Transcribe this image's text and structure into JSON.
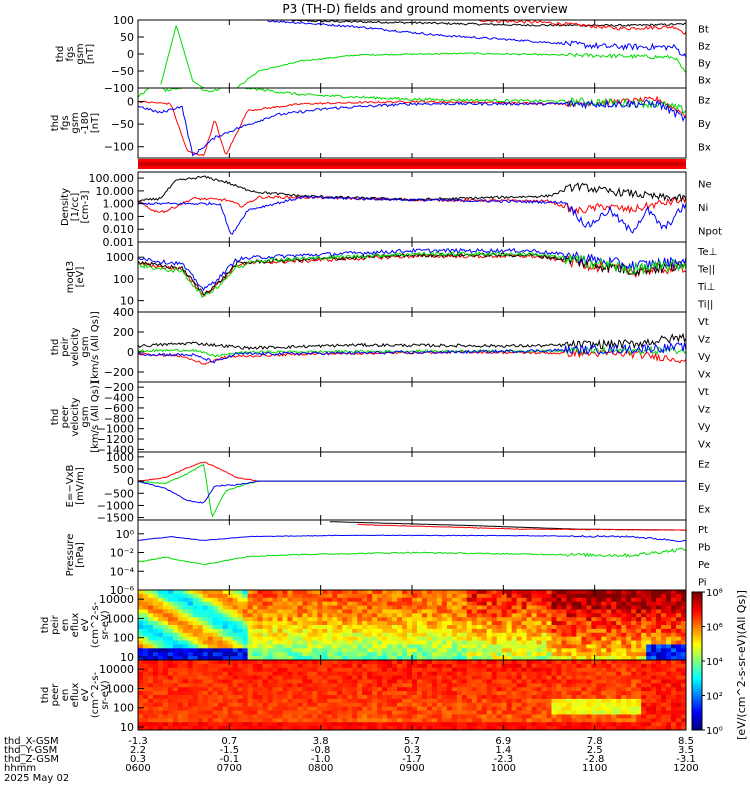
{
  "title": "P3 (TH-D) fields and ground moments overview",
  "chart_data": {
    "type": "line",
    "title": "P3 (TH-D) fields and ground moments overview",
    "panels": [
      {
        "ylabel": [
          "thd",
          "fgs",
          "gsm",
          "[nT]"
        ],
        "ylim": [
          -100,
          100
        ],
        "scale": "linear",
        "yticks": [
          "100",
          "50",
          "0",
          "−50",
          "−100"
        ],
        "ytick_values": [
          100,
          50,
          0,
          -50,
          -100
        ],
        "series": [
          {
            "name": "Bt",
            "color": "#000000"
          },
          {
            "name": "Bz",
            "color": "#ff0000"
          },
          {
            "name": "By",
            "color": "#00dd00"
          },
          {
            "name": "Bx",
            "color": "#0000ff"
          }
        ]
      },
      {
        "ylabel": [
          "thd",
          "fgs",
          "gsm",
          "-180",
          "[nT]"
        ],
        "ylim": [
          -125,
          30
        ],
        "scale": "linear",
        "yticks": [
          "0",
          "−50",
          "−100"
        ],
        "ytick_values": [
          0,
          -50,
          -100
        ],
        "series": [
          {
            "name": "Bz",
            "color": "#ff0000"
          },
          {
            "name": "By",
            "color": "#00dd00"
          },
          {
            "name": "Bx",
            "color": "#0000ff"
          }
        ]
      },
      {
        "ylabel": [
          "Density",
          "[1/cc]",
          "[cm-3]"
        ],
        "ylim": [
          0.001,
          300
        ],
        "scale": "log",
        "yticks": [
          "100.000",
          "10.000",
          "1.000",
          "0.100",
          "0.010",
          "0.001"
        ],
        "ytick_values": [
          100,
          10,
          1,
          0.1,
          0.01,
          0.001
        ],
        "series": [
          {
            "name": "Ne",
            "color": "#ff0000"
          },
          {
            "name": "Ni",
            "color": "#000000"
          },
          {
            "name": "Npot",
            "color": "#0000ff"
          }
        ]
      },
      {
        "ylabel": [
          "moqt3",
          "[eV]"
        ],
        "ylim": [
          3,
          5000
        ],
        "scale": "log",
        "yticks": [
          "1000",
          "100",
          "10"
        ],
        "ytick_values": [
          1000,
          100,
          10
        ],
        "series": [
          {
            "name": "Te⊥",
            "color": "#ff0000"
          },
          {
            "name": "Te||",
            "color": "#000000"
          },
          {
            "name": "Ti⊥",
            "color": "#0000ff"
          },
          {
            "name": "Ti||",
            "color": "#00dd00"
          }
        ]
      },
      {
        "ylabel": [
          "thd",
          "peir",
          "velocity",
          "gsm",
          "[km/s (All Qs)]"
        ],
        "ylim": [
          -300,
          400
        ],
        "scale": "linear",
        "yticks": [
          "400",
          "200",
          "0",
          "−200"
        ],
        "ytick_values": [
          400,
          200,
          0,
          -200
        ],
        "series": [
          {
            "name": "Vt",
            "color": "#000000"
          },
          {
            "name": "Vz",
            "color": "#ff0000"
          },
          {
            "name": "Vy",
            "color": "#00dd00"
          },
          {
            "name": "Vx",
            "color": "#0000ff"
          }
        ]
      },
      {
        "ylabel": [
          "thd",
          "peer",
          "velocity",
          "gsm",
          "[km/s (All Qs)]"
        ],
        "ylim": [
          -1450,
          -100
        ],
        "scale": "linear",
        "yticks": [
          "−200",
          "−400",
          "−600",
          "−800",
          "−1000",
          "−1200",
          "−1400"
        ],
        "ytick_values": [
          -200,
          -400,
          -600,
          -800,
          -1000,
          -1200,
          -1400
        ],
        "series": [
          {
            "name": "Vt",
            "color": "#000000"
          },
          {
            "name": "Vz",
            "color": "#ff0000"
          },
          {
            "name": "Vy",
            "color": "#00dd00"
          },
          {
            "name": "Vx",
            "color": "#0000ff"
          }
        ]
      },
      {
        "ylabel": [
          "E=−VxB",
          "[mV/m]"
        ],
        "ylim": [
          -1600,
          1200
        ],
        "scale": "linear",
        "yticks": [
          "1000",
          "500",
          "0",
          "−500",
          "−1000",
          "−1500"
        ],
        "ytick_values": [
          1000,
          500,
          0,
          -500,
          -1000,
          -1500
        ],
        "series": [
          {
            "name": "Ez",
            "color": "#ff0000"
          },
          {
            "name": "Ey",
            "color": "#00dd00"
          },
          {
            "name": "Ex",
            "color": "#0000ff"
          }
        ]
      },
      {
        "ylabel": [
          "Pressure",
          "[nPa]"
        ],
        "ylim": [
          1e-06,
          30
        ],
        "scale": "log",
        "yticks": [
          "10⁰",
          "10⁻²",
          "10⁻⁴",
          "10⁻⁶"
        ],
        "ytick_values": [
          1,
          0.01,
          0.0001,
          1e-06
        ],
        "series": [
          {
            "name": "Pt",
            "color": "#000000"
          },
          {
            "name": "Pb",
            "color": "#ff0000"
          },
          {
            "name": "Pe",
            "color": "#00dd00"
          },
          {
            "name": "Pi",
            "color": "#0000ff"
          }
        ]
      },
      {
        "type": "heatmap",
        "ylabel": [
          "thd",
          "peir",
          "en",
          "eflux",
          "eV",
          "(cm^2-s-",
          "sr-eV)"
        ],
        "ylim": [
          7,
          30000
        ],
        "scale": "log",
        "yticks": [
          "10000",
          "1000",
          "100",
          "10"
        ],
        "ytick_values": [
          10000,
          1000,
          100,
          10
        ]
      },
      {
        "type": "heatmap",
        "ylabel": [
          "thd",
          "peer",
          "en",
          "eflux",
          "eV",
          "(cm^2-s-",
          "sr-eV)"
        ],
        "ylim": [
          7,
          30000
        ],
        "scale": "log",
        "yticks": [
          "10000",
          "1000",
          "100",
          "10"
        ],
        "ytick_values": [
          10000,
          1000,
          100,
          10
        ]
      }
    ],
    "colorbar": {
      "label": "[eV/(cm^2-s-sr-eV)(All Qs)]",
      "ticks": [
        "10⁸",
        "10⁶",
        "10⁴",
        "10²",
        "10⁰"
      ],
      "tick_values": [
        100000000,
        1000000,
        10000,
        100,
        1
      ]
    },
    "x_axis": {
      "row_labels": [
        "thd_X-GSM",
        "thd_Y-GSM",
        "thd_Z-GSM",
        "hhmm",
        "2025 May 02"
      ],
      "hhmm": [
        "0600",
        "0700",
        "0800",
        "0900",
        "1000",
        "1100",
        "1200"
      ],
      "thd_X-GSM": [
        "-1.3",
        "0.7",
        "3.8",
        "5.7",
        "6.9",
        "7.8",
        "8.5"
      ],
      "thd_Y-GSM": [
        "2.2",
        "-1.5",
        "-0.8",
        "0.3",
        "1.4",
        "2.5",
        "3.5"
      ],
      "thd_Z-GSM": [
        "0.3",
        "-0.1",
        "-1.0",
        "-1.7",
        "-2.3",
        "-2.8",
        "-3.1"
      ],
      "hour_values": [
        6,
        7,
        8,
        9,
        10,
        11,
        12
      ]
    }
  }
}
